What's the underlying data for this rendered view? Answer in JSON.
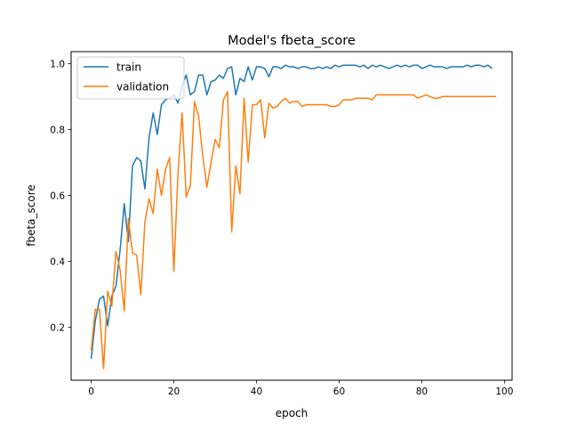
{
  "chart_data": {
    "type": "line",
    "title": "Model's fbeta_score",
    "xlabel": "epoch",
    "ylabel": "fbeta_score",
    "xlim": [
      -4.85,
      101.85
    ],
    "ylim": [
      0.04,
      1.036
    ],
    "x_ticks": [
      0,
      20,
      40,
      60,
      80,
      100
    ],
    "y_ticks": [
      0.2,
      0.4,
      0.6,
      0.8,
      1.0
    ],
    "x_tick_labels": [
      "0",
      "20",
      "40",
      "60",
      "80",
      "100"
    ],
    "y_tick_labels": [
      "0.2",
      "0.4",
      "0.6",
      "0.8",
      "1.0"
    ],
    "grid": false,
    "legend_position": "top-left",
    "series": [
      {
        "name": "train",
        "color": "#1f77b4",
        "values": [
          0.105,
          0.22,
          0.285,
          0.295,
          0.205,
          0.295,
          0.325,
          0.435,
          0.575,
          0.46,
          0.69,
          0.715,
          0.705,
          0.62,
          0.775,
          0.85,
          0.785,
          0.875,
          0.89,
          0.895,
          0.905,
          0.88,
          0.935,
          0.965,
          0.905,
          0.915,
          0.965,
          0.965,
          0.905,
          0.945,
          0.95,
          0.965,
          0.955,
          0.985,
          0.99,
          0.905,
          0.955,
          0.945,
          0.99,
          0.95,
          0.99,
          0.99,
          0.985,
          0.96,
          0.99,
          0.99,
          0.985,
          0.995,
          0.99,
          0.99,
          0.985,
          0.99,
          0.99,
          0.985,
          0.985,
          0.99,
          0.985,
          0.99,
          0.985,
          0.995,
          0.99,
          0.995,
          0.995,
          0.995,
          0.995,
          0.99,
          0.995,
          0.985,
          0.995,
          0.99,
          0.995,
          0.99,
          0.985,
          0.99,
          0.995,
          0.99,
          0.995,
          0.99,
          0.995,
          0.995,
          0.985,
          0.99,
          0.995,
          0.99,
          0.99,
          0.99,
          0.985,
          0.99,
          0.99,
          0.99,
          0.99,
          0.995,
          0.99,
          0.995,
          0.995,
          0.99,
          0.995,
          0.985
        ]
      },
      {
        "name": "validation",
        "color": "#ff7f0e",
        "values": [
          0.13,
          0.255,
          0.255,
          0.075,
          0.31,
          0.265,
          0.43,
          0.375,
          0.25,
          0.53,
          0.425,
          0.42,
          0.3,
          0.52,
          0.59,
          0.545,
          0.68,
          0.6,
          0.68,
          0.715,
          0.37,
          0.665,
          0.85,
          0.595,
          0.63,
          0.885,
          0.84,
          0.72,
          0.625,
          0.7,
          0.77,
          0.745,
          0.89,
          0.915,
          0.49,
          0.69,
          0.605,
          0.895,
          0.7,
          0.875,
          0.875,
          0.89,
          0.775,
          0.88,
          0.865,
          0.87,
          0.885,
          0.895,
          0.88,
          0.885,
          0.885,
          0.87,
          0.875,
          0.875,
          0.875,
          0.875,
          0.875,
          0.875,
          0.87,
          0.87,
          0.875,
          0.89,
          0.89,
          0.89,
          0.895,
          0.895,
          0.895,
          0.895,
          0.89,
          0.905,
          0.905,
          0.905,
          0.905,
          0.905,
          0.905,
          0.905,
          0.905,
          0.905,
          0.905,
          0.895,
          0.9,
          0.905,
          0.9,
          0.895,
          0.895,
          0.9,
          0.9,
          0.9,
          0.9,
          0.9,
          0.9,
          0.9,
          0.9,
          0.9,
          0.9,
          0.9,
          0.9,
          0.9,
          0.9
        ]
      }
    ]
  }
}
